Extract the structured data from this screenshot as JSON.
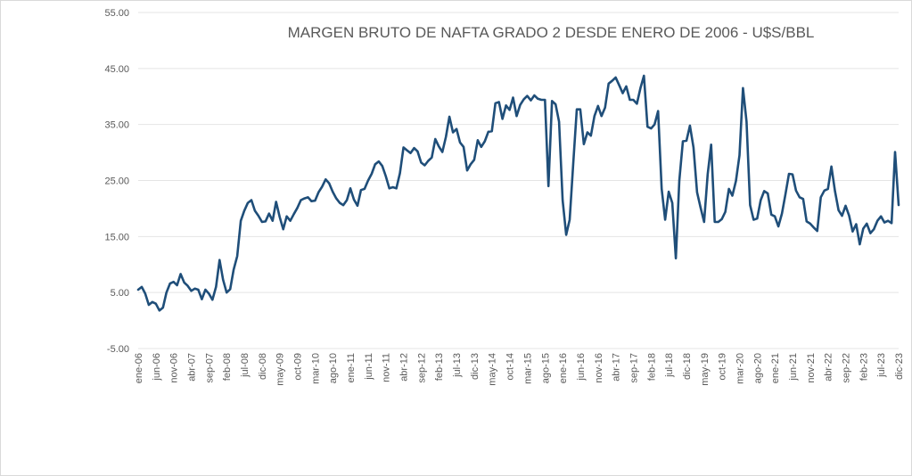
{
  "colors": {
    "series": "#1f4e79",
    "grid": "#e4e4e4",
    "text": "#595959"
  },
  "chart_data": {
    "type": "line",
    "title": "MARGEN BRUTO DE NAFTA GRADO 2 DESDE ENERO DE 2006 - U$S/BBL",
    "xlabel": "",
    "ylabel": "",
    "ylim": [
      -5,
      55
    ],
    "yticks": [
      -5,
      5,
      15,
      25,
      35,
      45,
      55
    ],
    "ytick_labels": [
      "-5.00",
      "5.00",
      "15.00",
      "25.00",
      "35.00",
      "45.00",
      "55.00"
    ],
    "grid": "horizontal",
    "legend": "none",
    "x_start": "2006-01",
    "x_end": "2023-12",
    "xtick_labels": [
      "ene-06",
      "jun-06",
      "nov-06",
      "abr-07",
      "sep-07",
      "feb-08",
      "jul-08",
      "dic-08",
      "may-09",
      "oct-09",
      "mar-10",
      "ago-10",
      "ene-11",
      "jun-11",
      "nov-11",
      "abr-12",
      "sep-12",
      "feb-13",
      "jul-13",
      "dic-13",
      "may-14",
      "oct-14",
      "mar-15",
      "ago-15",
      "ene-16",
      "jun-16",
      "nov-16",
      "abr-17",
      "sep-17",
      "feb-18",
      "jul-18",
      "dic-18",
      "may-19",
      "oct-19",
      "mar-20",
      "ago-20",
      "ene-21",
      "jun-21",
      "nov-21",
      "abr-22",
      "sep-22",
      "feb-23",
      "jul-23",
      "dic-23"
    ],
    "series": [
      {
        "values": [
          5.5,
          6.0,
          4.8,
          2.8,
          3.3,
          3.0,
          1.8,
          2.3,
          5.0,
          6.6,
          6.9,
          6.3,
          8.3,
          6.8,
          6.2,
          5.3,
          5.7,
          5.5,
          3.8,
          5.5,
          4.8,
          3.7,
          6.0,
          10.8,
          7.3,
          5.0,
          5.6,
          9.1,
          11.5,
          17.8,
          19.6,
          21.0,
          21.5,
          19.6,
          18.7,
          17.6,
          17.7,
          19.1,
          17.8,
          21.2,
          18.5,
          16.3,
          18.6,
          17.8,
          19.0,
          20.1,
          21.5,
          21.8,
          22.0,
          21.3,
          21.4,
          22.9,
          23.9,
          25.2,
          24.5,
          23.0,
          21.8,
          21.0,
          20.6,
          21.5,
          23.6,
          21.6,
          20.5,
          23.3,
          23.5,
          25.0,
          26.2,
          27.9,
          28.4,
          27.6,
          25.8,
          23.6,
          23.8,
          23.6,
          26.3,
          30.9,
          30.4,
          29.9,
          30.8,
          30.2,
          28.2,
          27.7,
          28.5,
          29.1,
          32.4,
          31.1,
          30.1,
          32.8,
          36.4,
          33.6,
          34.2,
          31.8,
          31.0,
          26.8,
          27.9,
          28.7,
          32.2,
          31.0,
          32.0,
          33.7,
          33.8,
          38.8,
          39.0,
          36.0,
          38.4,
          37.6,
          39.8,
          36.5,
          38.5,
          39.5,
          40.1,
          39.3,
          40.2,
          39.6,
          39.4,
          39.4,
          24.0,
          39.2,
          38.6,
          35.5,
          21.5,
          15.3,
          18.0,
          28.0,
          37.7,
          37.7,
          31.5,
          33.6,
          33.0,
          36.5,
          38.3,
          36.5,
          38.0,
          42.3,
          42.8,
          43.4,
          42.0,
          40.6,
          41.8,
          39.4,
          39.4,
          38.7,
          41.5,
          43.7,
          34.6,
          34.3,
          35.0,
          37.4,
          23.5,
          18.0,
          23.0,
          21.0,
          11.1,
          25.0,
          32.0,
          32.1,
          34.8,
          30.9,
          22.9,
          20.2,
          17.6,
          26.1,
          31.4,
          17.6,
          17.6,
          18.1,
          19.4,
          23.5,
          22.3,
          24.9,
          29.5,
          41.5,
          35.5,
          20.6,
          18.0,
          18.2,
          21.5,
          23.1,
          22.7,
          18.9,
          18.6,
          16.8,
          19.1,
          22.5,
          26.2,
          26.1,
          23.2,
          22.0,
          21.7,
          17.7,
          17.3,
          16.6,
          16.0,
          22.0,
          23.2,
          23.5,
          27.5,
          23.1,
          19.7,
          18.7,
          20.5,
          18.7,
          15.9,
          17.2,
          13.6,
          16.4,
          17.3,
          15.6,
          16.3,
          17.8,
          18.6,
          17.5,
          17.8,
          17.4,
          30.1,
          20.6
        ]
      }
    ]
  }
}
